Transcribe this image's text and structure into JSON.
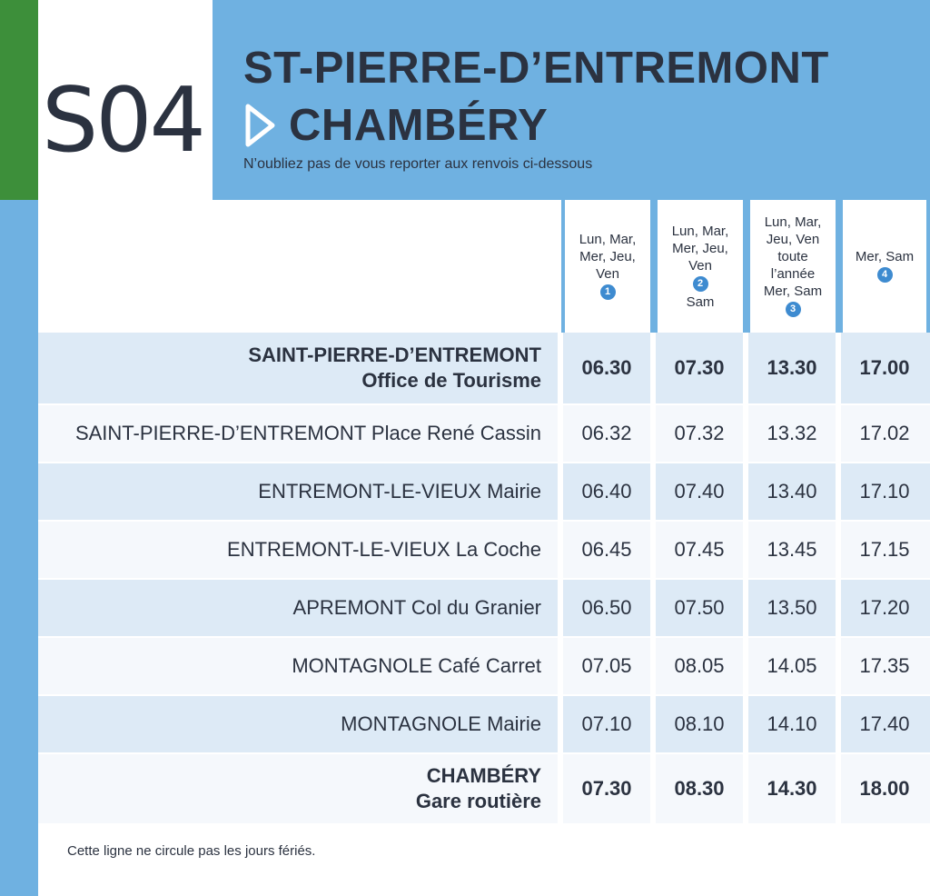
{
  "header": {
    "line_code": "S04",
    "from": "ST-PIERRE-D’ENTREMONT",
    "to": "CHAMBÉRY",
    "subtitle": "N’oubliez pas de vous reporter aux renvois ci-dessous"
  },
  "columns": [
    {
      "days": [
        "Lun, Mar,",
        "Mer, Jeu,",
        "Ven"
      ],
      "note": "1",
      "extra": ""
    },
    {
      "days": [
        "Lun, Mar,",
        "Mer, Jeu,",
        "Ven"
      ],
      "note": "2",
      "extra": "Sam"
    },
    {
      "days": [
        "Lun, Mar,",
        "Jeu, Ven",
        "toute",
        "l’année"
      ],
      "note": "3",
      "extra": "Mer, Sam"
    },
    {
      "days": [
        "Mer, Sam"
      ],
      "note": "4",
      "extra": ""
    }
  ],
  "rows": [
    {
      "stop": [
        "SAINT-PIERRE-D’ENTREMONT",
        "Office de Tourisme"
      ],
      "times": [
        "06.30",
        "07.30",
        "13.30",
        "17.00"
      ]
    },
    {
      "stop": [
        "SAINT-PIERRE-D’ENTREMONT Place René Cassin"
      ],
      "times": [
        "06.32",
        "07.32",
        "13.32",
        "17.02"
      ]
    },
    {
      "stop": [
        "ENTREMONT-LE-VIEUX Mairie"
      ],
      "times": [
        "06.40",
        "07.40",
        "13.40",
        "17.10"
      ]
    },
    {
      "stop": [
        "ENTREMONT-LE-VIEUX La Coche"
      ],
      "times": [
        "06.45",
        "07.45",
        "13.45",
        "17.15"
      ]
    },
    {
      "stop": [
        "APREMONT Col du Granier"
      ],
      "times": [
        "06.50",
        "07.50",
        "13.50",
        "17.20"
      ]
    },
    {
      "stop": [
        "MONTAGNOLE Café Carret"
      ],
      "times": [
        "07.05",
        "08.05",
        "14.05",
        "17.35"
      ]
    },
    {
      "stop": [
        "MONTAGNOLE Mairie"
      ],
      "times": [
        "07.10",
        "08.10",
        "14.10",
        "17.40"
      ]
    },
    {
      "stop": [
        "CHAMBÉRY",
        "Gare routière"
      ],
      "times": [
        "07.30",
        "08.30",
        "14.30",
        "18.00"
      ]
    }
  ],
  "footnote": "Cette ligne ne circule pas les jours fériés.",
  "colors": {
    "accent_blue": "#6fb1e1",
    "line_green": "#3d8f3a",
    "text": "#2b3240",
    "note_badge": "#3e8bd0"
  }
}
